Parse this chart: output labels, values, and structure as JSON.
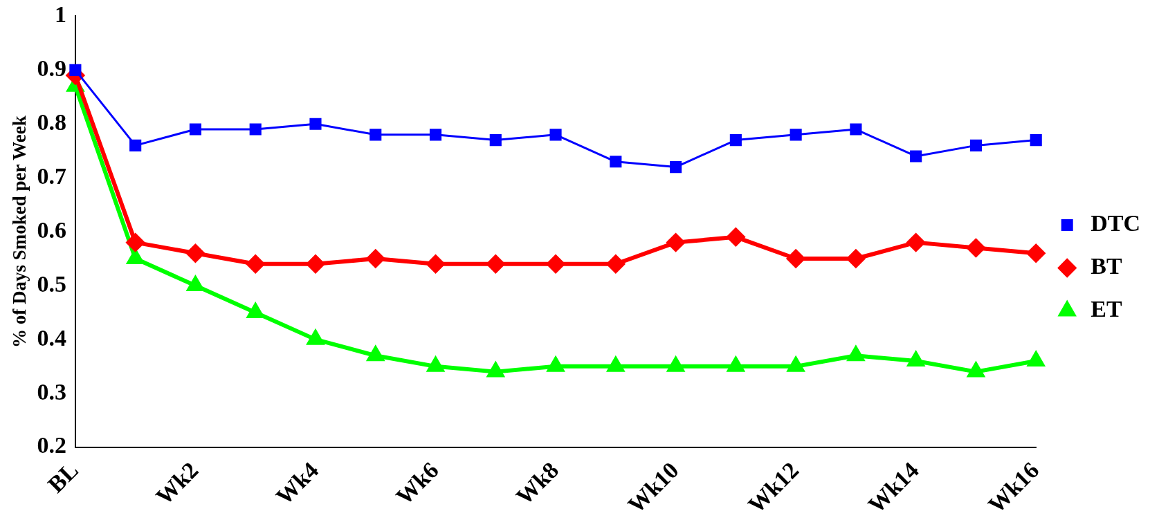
{
  "chart_data": {
    "type": "line",
    "ylabel": "% of Days Smoked per Week",
    "categories": [
      "BL",
      null,
      "Wk2",
      null,
      "Wk4",
      null,
      "Wk6",
      null,
      "Wk8",
      null,
      "Wk10",
      null,
      "Wk12",
      null,
      "Wk14",
      null,
      "Wk16"
    ],
    "series": [
      {
        "name": "DTC",
        "color": "#0000ff",
        "marker": "square",
        "values": [
          0.9,
          0.76,
          0.79,
          0.79,
          0.8,
          0.78,
          0.78,
          0.77,
          0.78,
          0.73,
          0.72,
          0.77,
          0.78,
          0.79,
          0.74,
          0.76,
          0.77
        ]
      },
      {
        "name": "BT",
        "color": "#ff0000",
        "marker": "diamond",
        "values": [
          0.89,
          0.58,
          0.56,
          0.54,
          0.54,
          0.55,
          0.54,
          0.54,
          0.54,
          0.54,
          0.58,
          0.59,
          0.55,
          0.55,
          0.58,
          0.57,
          0.56
        ]
      },
      {
        "name": "ET",
        "color": "#00ff00",
        "marker": "triangle",
        "values": [
          0.87,
          0.55,
          0.5,
          0.45,
          0.4,
          0.37,
          0.35,
          0.34,
          0.35,
          0.35,
          0.35,
          0.35,
          0.35,
          0.37,
          0.36,
          0.34,
          0.36
        ]
      }
    ],
    "ylim": [
      0.2,
      1
    ],
    "yticks": [
      0.2,
      0.3,
      0.4,
      0.5,
      0.6,
      0.7,
      0.8,
      0.9,
      1
    ],
    "grid": false,
    "legend": "right",
    "line_style": "solid"
  }
}
